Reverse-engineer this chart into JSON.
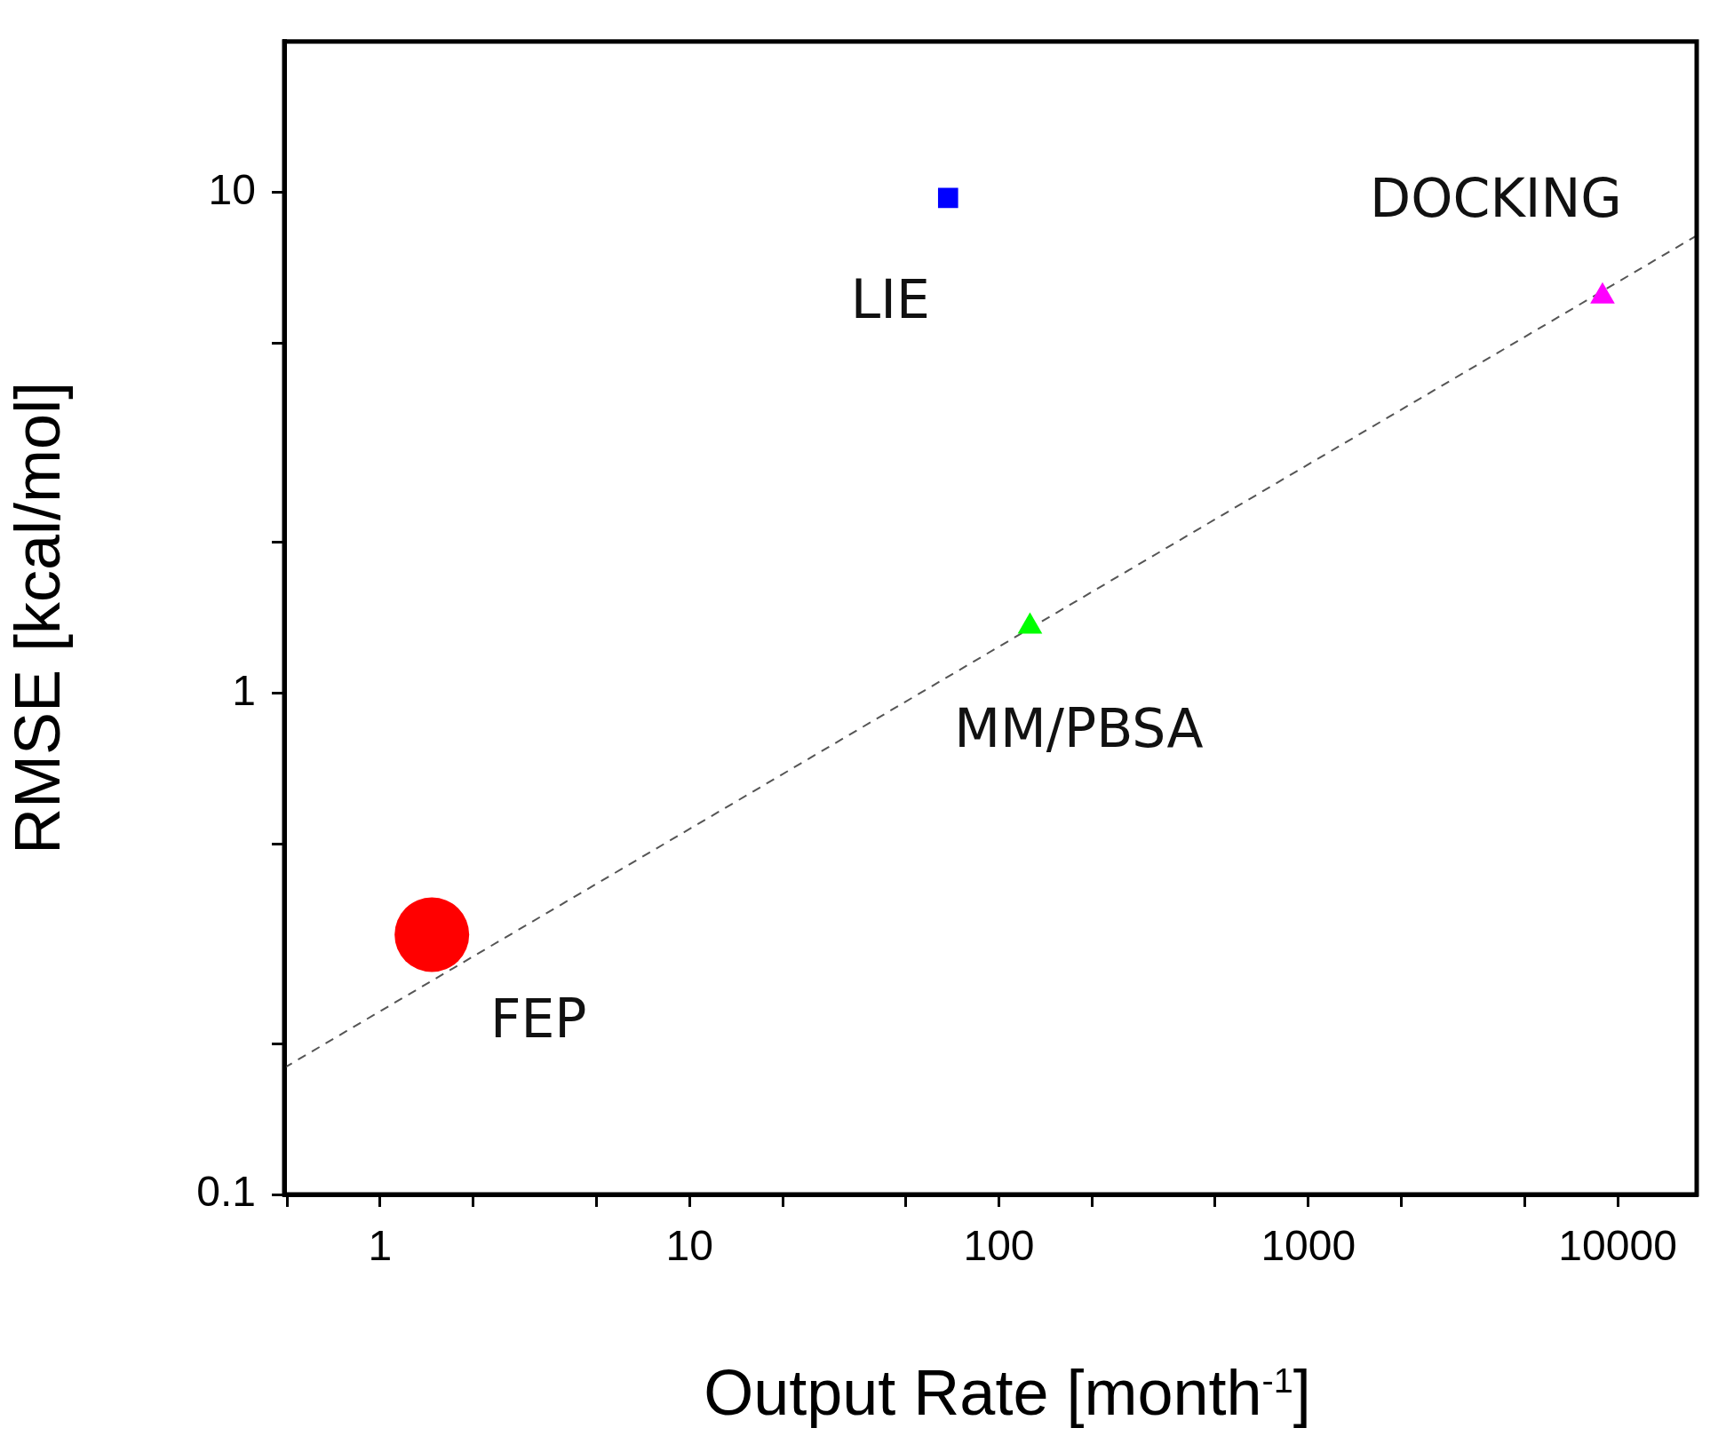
{
  "chart_data": {
    "type": "scatter",
    "xlabel": "Output Rate [month$^{-1}$]",
    "ylabel": "RMSE [kcal/mol]",
    "log": "xy",
    "xlim": [
      0.49,
      18000
    ],
    "ylim": [
      0.1,
      20
    ],
    "xticks": [
      {
        "value": 0.5,
        "label": null
      },
      1,
      {
        "value": 2,
        "label": null
      },
      {
        "value": 5,
        "label": null
      },
      10,
      {
        "value": 20,
        "label": null
      },
      {
        "value": 50,
        "label": null
      },
      100,
      {
        "value": 200,
        "label": null
      },
      {
        "value": 500,
        "label": null
      },
      1000,
      {
        "value": 2000,
        "label": null
      },
      {
        "value": 5000,
        "label": null
      },
      10000
    ],
    "yticks": [
      0.1,
      {
        "value": 0.2,
        "label": null
      },
      {
        "value": 0.5,
        "label": null
      },
      1,
      {
        "value": 2,
        "label": null
      },
      {
        "value": 5,
        "label": null
      },
      10
    ],
    "grid": false,
    "legend": false,
    "series": [
      {
        "color": "#ff0000",
        "marker": "circle",
        "x": [
          1.47
        ],
        "values": [
          0.33
        ]
      },
      {
        "color": "#0000ff",
        "marker": "square",
        "x": [
          68.5
        ],
        "values": [
          9.75
        ]
      },
      {
        "color": "#00ff00",
        "marker": "triangle",
        "x": [
          126
        ],
        "values": [
          1.36
        ]
      },
      {
        "color": "#ff00ff",
        "marker": "triangle",
        "x": [
          8930
        ],
        "values": [
          6.2
        ]
      },
      {
        "type": "line",
        "color": "#555555",
        "marker": "none",
        "line_style": "dashed",
        "x": [
          0.49,
          18000
        ],
        "values": [
          0.179,
          8.2
        ]
      }
    ],
    "annotations": [
      "FEP",
      "LIE",
      "MM/PBSA",
      "DOCKING"
    ]
  }
}
